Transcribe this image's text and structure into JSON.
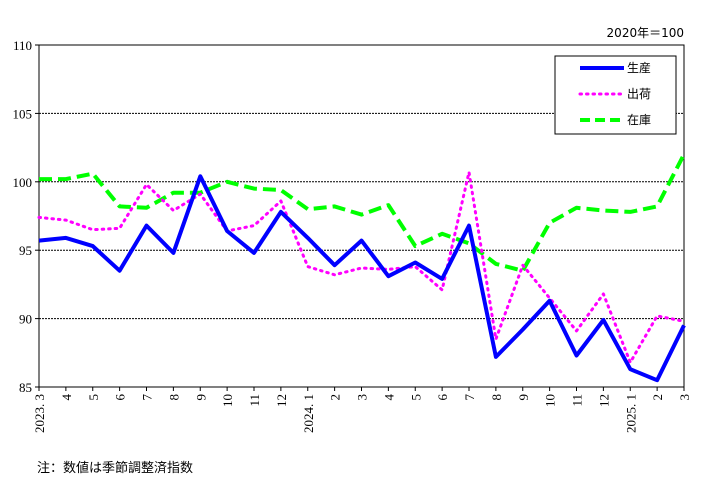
{
  "chart_data": {
    "type": "line",
    "base_note": "2020年＝100",
    "footnote": "注：数値は季節調整済指数",
    "x_labels": [
      "2023. 3",
      "4",
      "5",
      "6",
      "7",
      "8",
      "9",
      "10",
      "11",
      "12",
      "2024. 1",
      "2",
      "3",
      "4",
      "5",
      "6",
      "7",
      "8",
      "9",
      "10",
      "11",
      "12",
      "2025. 1",
      "2",
      "3"
    ],
    "ylim": [
      85,
      110
    ],
    "y_ticks": [
      85,
      90,
      95,
      100,
      105,
      110
    ],
    "grid": "horizontal dashed at 95, 100, 105",
    "legend_position": "top-right",
    "series": [
      {
        "name": "生産",
        "color": "#0000ff",
        "style": "solid",
        "values": [
          95.7,
          95.9,
          95.3,
          93.5,
          96.8,
          94.8,
          100.4,
          96.4,
          94.8,
          97.8,
          95.9,
          93.9,
          95.7,
          93.1,
          94.1,
          92.9,
          96.8,
          87.2,
          89.2,
          91.3,
          87.3,
          89.9,
          86.3,
          85.5,
          89.5
        ]
      },
      {
        "name": "出荷",
        "color": "#ff00ff",
        "style": "dotted",
        "values": [
          97.4,
          97.2,
          96.5,
          96.6,
          99.8,
          97.9,
          99.1,
          96.4,
          96.8,
          98.6,
          93.8,
          93.2,
          93.7,
          93.6,
          93.8,
          92.1,
          100.7,
          88.5,
          93.9,
          91.5,
          89.1,
          91.8,
          86.8,
          90.2,
          89.8
        ]
      },
      {
        "name": "在庫",
        "color": "#00ff00",
        "style": "dashed",
        "values": [
          100.2,
          100.2,
          100.6,
          98.2,
          98.1,
          99.2,
          99.2,
          100.0,
          99.5,
          99.4,
          98.0,
          98.2,
          97.6,
          98.3,
          95.3,
          96.2,
          95.5,
          94.0,
          93.5,
          97.0,
          98.1,
          97.9,
          97.8,
          98.2,
          102.0
        ]
      }
    ]
  }
}
